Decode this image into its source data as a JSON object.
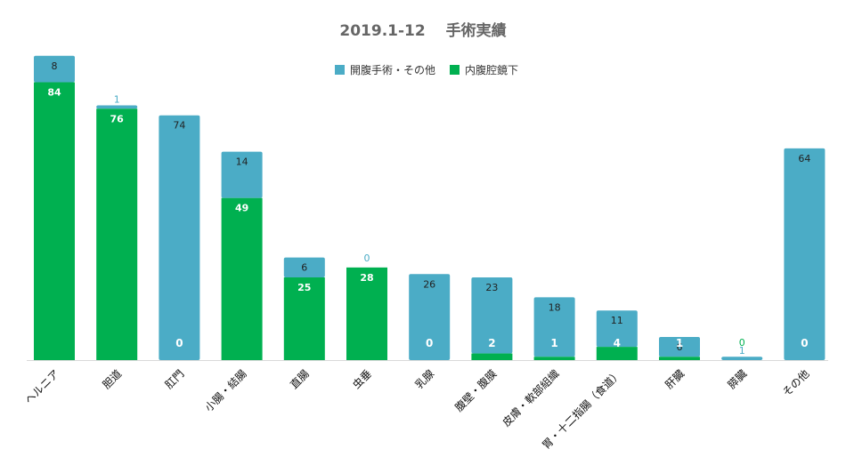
{
  "chart_data": {
    "type": "bar",
    "stacked": true,
    "title": "2019.1-12　 手術実績",
    "categories": [
      "ヘルニア",
      "胆道",
      "肛門",
      "小腸・結腸",
      "直腸",
      "虫垂",
      "乳腺",
      "腹壁・腹膜",
      "皮膚・軟部組織",
      "胃・十二指腸（食道）",
      "肝臓",
      "膵臓",
      "その他"
    ],
    "series": [
      {
        "name": "内腹腔鏡下",
        "color": "#00b050",
        "values": [
          84,
          76,
          0,
          49,
          25,
          28,
          0,
          2,
          1,
          4,
          1,
          0,
          0
        ]
      },
      {
        "name": "開腹手術・その他",
        "color": "#4bacc6",
        "values": [
          8,
          1,
          74,
          14,
          6,
          0,
          26,
          23,
          18,
          11,
          6,
          1,
          64
        ]
      }
    ],
    "legend_order": [
      "開腹手術・その他",
      "内腹腔鏡下"
    ],
    "legend_position": "top-center",
    "ylim": [
      0,
      92
    ],
    "grid": false,
    "xlabel": "",
    "ylabel": ""
  }
}
